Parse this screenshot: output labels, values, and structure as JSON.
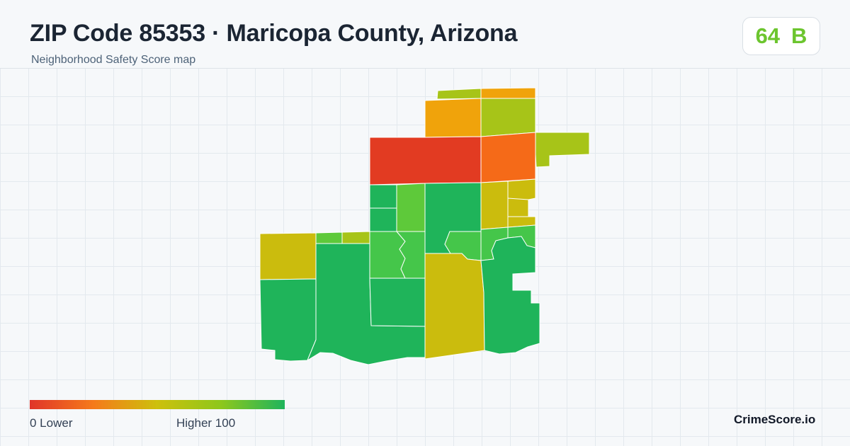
{
  "header": {
    "title": "ZIP Code 85353 · Maricopa County, Arizona",
    "subtitle": "Neighborhood Safety Score map"
  },
  "score": {
    "value": "64",
    "grade": "B",
    "color": "#6cc52e"
  },
  "legend": {
    "low_label": "0  Lower",
    "high_label": "Higher  100",
    "gradient_colors": [
      "#e0352a",
      "#f57a1a",
      "#cdc00c",
      "#8ec71c",
      "#1fb45c"
    ]
  },
  "brand": "CrimeScore.io",
  "map": {
    "region_colors": {
      "red": "#e23b22",
      "orange_red": "#f56a18",
      "orange": "#f0a30b",
      "olive": "#cbbc0d",
      "yellow_green": "#a7c418",
      "light_green": "#5ec93a",
      "mid_green": "#45c64a",
      "green": "#1fb45a"
    }
  }
}
